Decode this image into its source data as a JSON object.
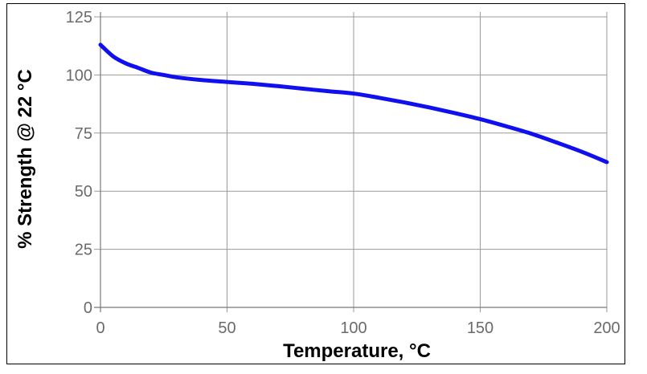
{
  "chart_data": {
    "type": "line",
    "title": "",
    "xlabel": "Temperature, °C",
    "ylabel": "% Strength @ 22 °C",
    "xlim": [
      0,
      200
    ],
    "ylim": [
      0,
      125
    ],
    "xticks": [
      "0",
      "50",
      "100",
      "150",
      "200"
    ],
    "yticks": [
      "0",
      "25",
      "50",
      "75",
      "100",
      "125"
    ],
    "grid": true,
    "legend": "none",
    "series": [
      {
        "color": "#1010ee",
        "x": [
          0,
          5,
          10,
          15,
          20,
          25,
          30,
          40,
          50,
          60,
          70,
          80,
          90,
          100,
          110,
          120,
          130,
          140,
          150,
          160,
          170,
          180,
          190,
          200
        ],
        "y": [
          113,
          108,
          105,
          103,
          101,
          100,
          99,
          97.8,
          97,
          96.2,
          95.2,
          94.1,
          93,
          92,
          90.2,
          88.2,
          86,
          83.6,
          81,
          78,
          74.8,
          71,
          67,
          62.5
        ]
      }
    ]
  }
}
